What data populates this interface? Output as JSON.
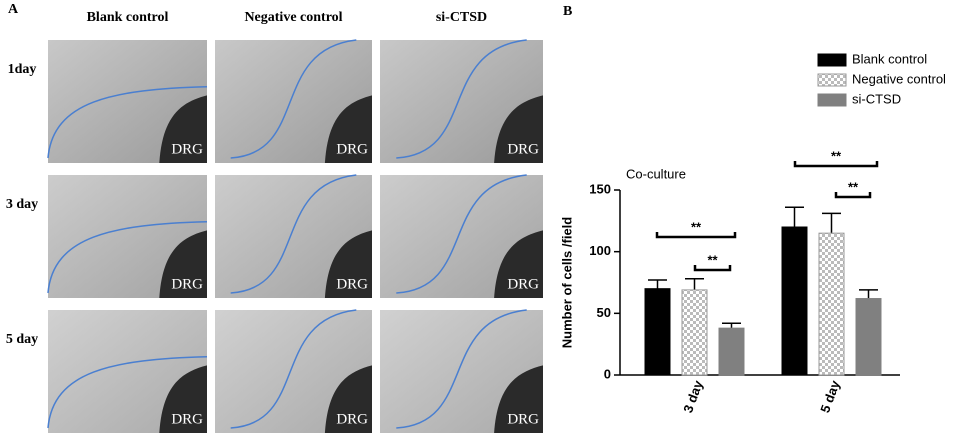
{
  "panel_a": {
    "label": "A",
    "columns": [
      "Blank control",
      "Negative control",
      "si-CTSD"
    ],
    "rows": [
      "1day",
      "3 day",
      "5 day"
    ],
    "image_label": "DRG"
  },
  "chart_data": {
    "type": "bar",
    "panel_label": "B",
    "title": "Co-culture",
    "y_label": "Number of cells /field",
    "categories": [
      "3 day",
      "5 day"
    ],
    "series": [
      {
        "name": "Blank control",
        "color": "#000000",
        "values": [
          70,
          120
        ],
        "errors": [
          7,
          16
        ]
      },
      {
        "name": "Negative control",
        "color": "#ffffff",
        "pattern": "checker",
        "values": [
          69,
          115
        ],
        "errors": [
          9,
          16
        ]
      },
      {
        "name": "si-CTSD",
        "color": "#808080",
        "values": [
          38,
          62
        ],
        "errors": [
          4,
          7
        ]
      }
    ],
    "ylim": [
      0,
      150
    ],
    "yticks": [
      0,
      50,
      100,
      150
    ],
    "grid": false,
    "legend": "top-right",
    "annotations": [
      "**",
      "**",
      "**",
      "**"
    ]
  }
}
